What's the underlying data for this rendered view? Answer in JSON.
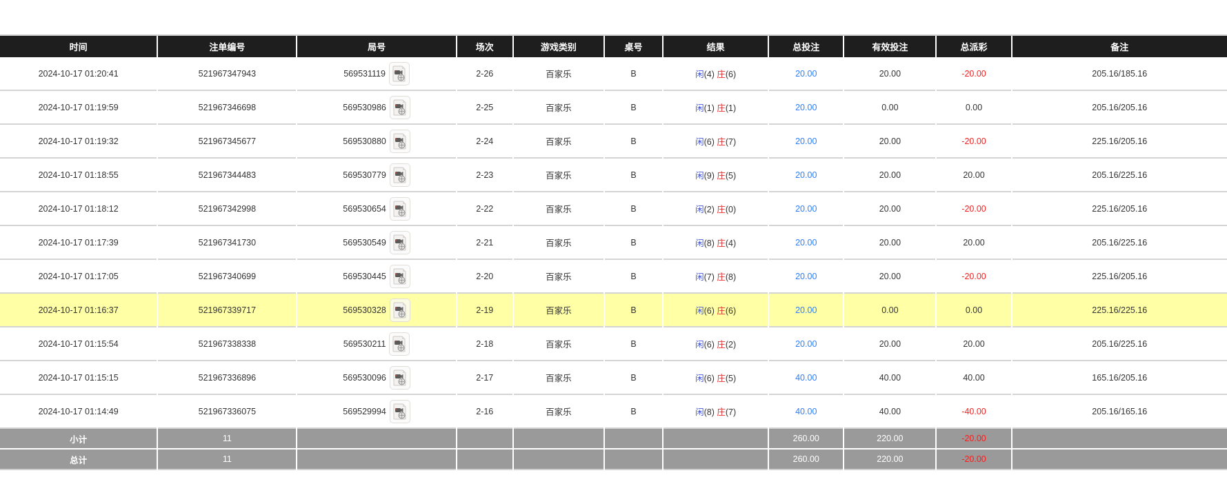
{
  "colors": {
    "header_bg": "#1e1e1e",
    "header_text": "#ffffff",
    "row_highlight_bg": "#ffffa6",
    "summary_bg": "#9a9a9a",
    "player_blue": "#4356d6",
    "banker_red": "#e03030",
    "bet_amount_blue": "#2f7df6",
    "negative_red": "#f51e1e"
  },
  "table": {
    "columns": [
      {
        "key": "time",
        "label": "时间"
      },
      {
        "key": "bet_no",
        "label": "注单编号"
      },
      {
        "key": "round_no",
        "label": "局号"
      },
      {
        "key": "session",
        "label": "场次"
      },
      {
        "key": "game",
        "label": "游戏类别"
      },
      {
        "key": "table_no",
        "label": "桌号"
      },
      {
        "key": "result",
        "label": "结果"
      },
      {
        "key": "total_bet",
        "label": "总投注"
      },
      {
        "key": "valid_bet",
        "label": "有效投注"
      },
      {
        "key": "payout",
        "label": "总派彩"
      },
      {
        "key": "remark",
        "label": "备注"
      }
    ],
    "result_labels": {
      "player": "闲",
      "banker": "庄"
    },
    "rows": [
      {
        "time": "2024-10-17 01:20:41",
        "bet_no": "521967347943",
        "round_no": "569531119",
        "session": "2-26",
        "game": "百家乐",
        "table_no": "B",
        "result": {
          "player": "4",
          "banker": "6"
        },
        "total_bet": "20.00",
        "valid_bet": "20.00",
        "payout": "-20.00",
        "remark": "205.16/185.16",
        "highlighted": false
      },
      {
        "time": "2024-10-17 01:19:59",
        "bet_no": "521967346698",
        "round_no": "569530986",
        "session": "2-25",
        "game": "百家乐",
        "table_no": "B",
        "result": {
          "player": "1",
          "banker": "1"
        },
        "total_bet": "20.00",
        "valid_bet": "0.00",
        "payout": "0.00",
        "remark": "205.16/205.16",
        "highlighted": false
      },
      {
        "time": "2024-10-17 01:19:32",
        "bet_no": "521967345677",
        "round_no": "569530880",
        "session": "2-24",
        "game": "百家乐",
        "table_no": "B",
        "result": {
          "player": "6",
          "banker": "7"
        },
        "total_bet": "20.00",
        "valid_bet": "20.00",
        "payout": "-20.00",
        "remark": "225.16/205.16",
        "highlighted": false
      },
      {
        "time": "2024-10-17 01:18:55",
        "bet_no": "521967344483",
        "round_no": "569530779",
        "session": "2-23",
        "game": "百家乐",
        "table_no": "B",
        "result": {
          "player": "9",
          "banker": "5"
        },
        "total_bet": "20.00",
        "valid_bet": "20.00",
        "payout": "20.00",
        "remark": "205.16/225.16",
        "highlighted": false
      },
      {
        "time": "2024-10-17 01:18:12",
        "bet_no": "521967342998",
        "round_no": "569530654",
        "session": "2-22",
        "game": "百家乐",
        "table_no": "B",
        "result": {
          "player": "2",
          "banker": "0"
        },
        "total_bet": "20.00",
        "valid_bet": "20.00",
        "payout": "-20.00",
        "remark": "225.16/205.16",
        "highlighted": false
      },
      {
        "time": "2024-10-17 01:17:39",
        "bet_no": "521967341730",
        "round_no": "569530549",
        "session": "2-21",
        "game": "百家乐",
        "table_no": "B",
        "result": {
          "player": "8",
          "banker": "4"
        },
        "total_bet": "20.00",
        "valid_bet": "20.00",
        "payout": "20.00",
        "remark": "205.16/225.16",
        "highlighted": false
      },
      {
        "time": "2024-10-17 01:17:05",
        "bet_no": "521967340699",
        "round_no": "569530445",
        "session": "2-20",
        "game": "百家乐",
        "table_no": "B",
        "result": {
          "player": "7",
          "banker": "8"
        },
        "total_bet": "20.00",
        "valid_bet": "20.00",
        "payout": "-20.00",
        "remark": "225.16/205.16",
        "highlighted": false
      },
      {
        "time": "2024-10-17 01:16:37",
        "bet_no": "521967339717",
        "round_no": "569530328",
        "session": "2-19",
        "game": "百家乐",
        "table_no": "B",
        "result": {
          "player": "6",
          "banker": "6"
        },
        "total_bet": "20.00",
        "valid_bet": "0.00",
        "payout": "0.00",
        "remark": "225.16/225.16",
        "highlighted": true
      },
      {
        "time": "2024-10-17 01:15:54",
        "bet_no": "521967338338",
        "round_no": "569530211",
        "session": "2-18",
        "game": "百家乐",
        "table_no": "B",
        "result": {
          "player": "6",
          "banker": "2"
        },
        "total_bet": "20.00",
        "valid_bet": "20.00",
        "payout": "20.00",
        "remark": "205.16/225.16",
        "highlighted": false
      },
      {
        "time": "2024-10-17 01:15:15",
        "bet_no": "521967336896",
        "round_no": "569530096",
        "session": "2-17",
        "game": "百家乐",
        "table_no": "B",
        "result": {
          "player": "6",
          "banker": "5"
        },
        "total_bet": "40.00",
        "valid_bet": "40.00",
        "payout": "40.00",
        "remark": "165.16/205.16",
        "highlighted": false
      },
      {
        "time": "2024-10-17 01:14:49",
        "bet_no": "521967336075",
        "round_no": "569529994",
        "session": "2-16",
        "game": "百家乐",
        "table_no": "B",
        "result": {
          "player": "8",
          "banker": "7"
        },
        "total_bet": "40.00",
        "valid_bet": "40.00",
        "payout": "-40.00",
        "remark": "205.16/165.16",
        "highlighted": false
      }
    ],
    "summary_rows": [
      {
        "label": "小计",
        "count": "11",
        "total_bet": "260.00",
        "valid_bet": "220.00",
        "payout": "-20.00",
        "remark": ""
      },
      {
        "label": "总计",
        "count": "11",
        "total_bet": "260.00",
        "valid_bet": "220.00",
        "payout": "-20.00",
        "remark": ""
      }
    ]
  }
}
